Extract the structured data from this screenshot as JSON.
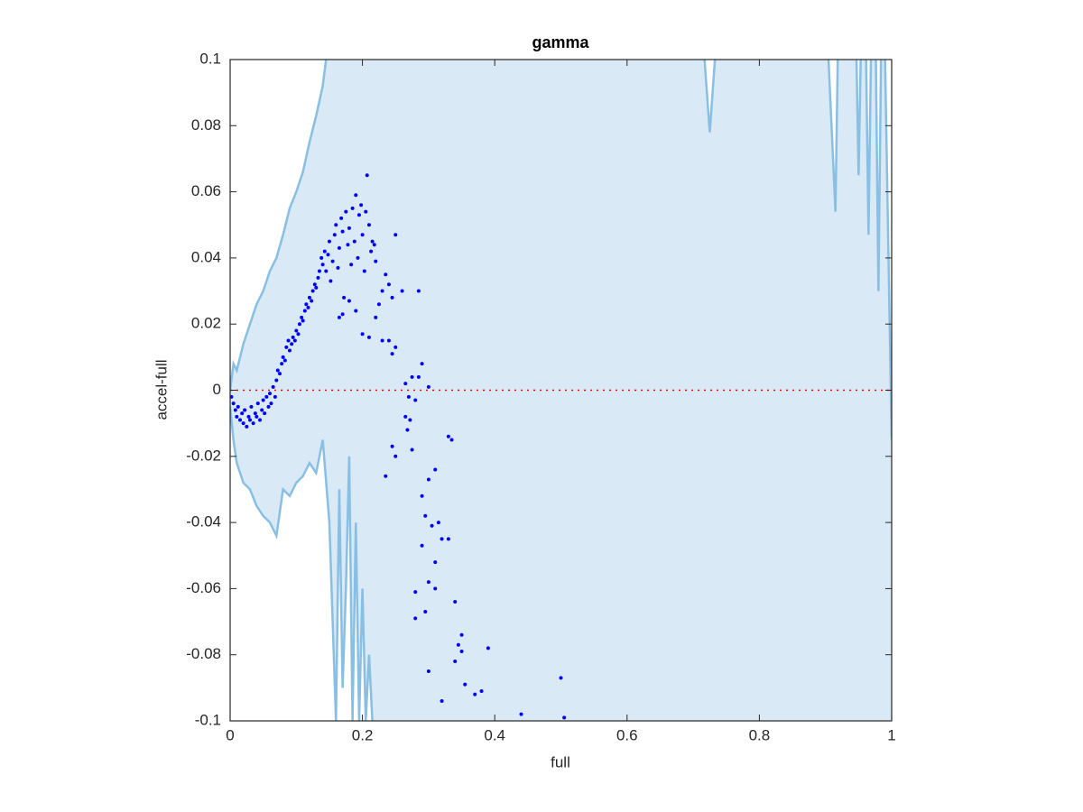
{
  "chart_data": {
    "type": "scatter",
    "title": "gamma",
    "x_label": "full",
    "y_label": "accel-full",
    "xlim": [
      0,
      1
    ],
    "ylim": [
      -0.1,
      0.1
    ],
    "xticks": [
      0,
      0.2,
      0.4,
      0.6,
      0.8,
      1
    ],
    "yticks": [
      -0.1,
      -0.08,
      -0.06,
      -0.04,
      -0.02,
      0,
      0.02,
      0.04,
      0.06,
      0.08,
      0.1
    ],
    "box": true,
    "band": {
      "fill_color": "#d9e9f5",
      "line_color": "#89bfe3",
      "upper": {
        "x": [
          0,
          0.005,
          0.01,
          0.02,
          0.03,
          0.04,
          0.05,
          0.06,
          0.07,
          0.08,
          0.09,
          0.1,
          0.11,
          0.12,
          0.13,
          0.14,
          0.145,
          0.15,
          0.71,
          0.725,
          0.74,
          0.9,
          0.915,
          0.92,
          0.945,
          0.95,
          0.955,
          0.96,
          0.965,
          0.97,
          0.975,
          0.98,
          0.985,
          0.99,
          1
        ],
        "values": [
          0,
          0.008,
          0.006,
          0.014,
          0.02,
          0.026,
          0.03,
          0.036,
          0.04,
          0.047,
          0.055,
          0.06,
          0.066,
          0.075,
          0.083,
          0.092,
          0.1,
          0.12,
          0.12,
          0.078,
          0.12,
          0.12,
          0.054,
          0.12,
          0.12,
          0.065,
          0.12,
          0.12,
          0.047,
          0.12,
          0.12,
          0.03,
          0.12,
          0.1,
          -0.015
        ]
      },
      "lower": {
        "x": [
          0,
          0.005,
          0.01,
          0.02,
          0.03,
          0.04,
          0.05,
          0.06,
          0.07,
          0.08,
          0.09,
          0.1,
          0.11,
          0.12,
          0.13,
          0.14,
          0.15,
          0.155,
          0.16,
          0.165,
          0.17,
          0.175,
          0.18,
          0.185,
          0.19,
          0.195,
          0.2,
          0.205,
          0.21,
          0.215,
          0.22,
          1
        ],
        "values": [
          -0.005,
          -0.015,
          -0.022,
          -0.028,
          -0.03,
          -0.035,
          -0.038,
          -0.04,
          -0.044,
          -0.03,
          -0.032,
          -0.028,
          -0.026,
          -0.022,
          -0.025,
          -0.015,
          -0.04,
          -0.07,
          -0.1,
          -0.03,
          -0.09,
          -0.06,
          -0.02,
          -0.1,
          -0.04,
          -0.1,
          -0.06,
          -0.1,
          -0.08,
          -0.1,
          -0.12,
          -0.12
        ]
      }
    },
    "points": {
      "color": "#0000ff",
      "x": [
        0.002,
        0.005,
        0.008,
        0.01,
        0.012,
        0.015,
        0.018,
        0.02,
        0.022,
        0.025,
        0.028,
        0.03,
        0.032,
        0.035,
        0.038,
        0.04,
        0.042,
        0.045,
        0.048,
        0.05,
        0.052,
        0.055,
        0.058,
        0.06,
        0.062,
        0.065,
        0.068,
        0.07,
        0.072,
        0.075,
        0.078,
        0.08,
        0.083,
        0.085,
        0.088,
        0.09,
        0.093,
        0.095,
        0.098,
        0.1,
        0.103,
        0.105,
        0.108,
        0.11,
        0.113,
        0.115,
        0.118,
        0.12,
        0.123,
        0.125,
        0.128,
        0.13,
        0.133,
        0.135,
        0.138,
        0.14,
        0.143,
        0.145,
        0.148,
        0.15,
        0.152,
        0.155,
        0.158,
        0.16,
        0.163,
        0.165,
        0.168,
        0.17,
        0.172,
        0.175,
        0.178,
        0.18,
        0.183,
        0.185,
        0.188,
        0.19,
        0.193,
        0.195,
        0.198,
        0.2,
        0.203,
        0.205,
        0.207,
        0.21,
        0.213,
        0.215,
        0.218,
        0.22,
        0.225,
        0.23,
        0.235,
        0.24,
        0.245,
        0.25,
        0.26,
        0.285,
        0.165,
        0.17,
        0.18,
        0.19,
        0.2,
        0.21,
        0.22,
        0.23,
        0.24,
        0.245,
        0.25,
        0.265,
        0.27,
        0.275,
        0.28,
        0.285,
        0.29,
        0.3,
        0.265,
        0.272,
        0.268,
        0.245,
        0.25,
        0.275,
        0.235,
        0.3,
        0.31,
        0.33,
        0.335,
        0.29,
        0.295,
        0.305,
        0.315,
        0.32,
        0.33,
        0.29,
        0.31,
        0.3,
        0.31,
        0.28,
        0.295,
        0.28,
        0.34,
        0.345,
        0.35,
        0.34,
        0.35,
        0.39,
        0.3,
        0.355,
        0.37,
        0.38,
        0.32,
        0.44,
        0.5,
        0.505
      ],
      "values": [
        -0.002,
        -0.004,
        -0.006,
        -0.008,
        -0.005,
        -0.009,
        -0.007,
        -0.01,
        -0.006,
        -0.011,
        -0.008,
        -0.009,
        -0.005,
        -0.01,
        -0.007,
        -0.008,
        -0.004,
        -0.009,
        -0.006,
        -0.003,
        -0.007,
        -0.002,
        -0.005,
        -0.001,
        -0.004,
        0.001,
        -0.002,
        0.003,
        0.006,
        0.005,
        0.008,
        0.01,
        0.009,
        0.013,
        0.015,
        0.012,
        0.014,
        0.016,
        0.015,
        0.018,
        0.017,
        0.02,
        0.022,
        0.021,
        0.024,
        0.026,
        0.025,
        0.028,
        0.027,
        0.03,
        0.032,
        0.031,
        0.034,
        0.036,
        0.04,
        0.038,
        0.042,
        0.036,
        0.041,
        0.045,
        0.033,
        0.039,
        0.047,
        0.05,
        0.037,
        0.043,
        0.052,
        0.048,
        0.028,
        0.054,
        0.044,
        0.049,
        0.038,
        0.055,
        0.045,
        0.059,
        0.04,
        0.053,
        0.056,
        0.047,
        0.036,
        0.054,
        0.065,
        0.05,
        0.042,
        0.045,
        0.044,
        0.039,
        0.026,
        0.03,
        0.035,
        0.032,
        0.028,
        0.047,
        0.03,
        0.03,
        0.022,
        0.023,
        0.027,
        0.024,
        0.017,
        0.016,
        0.022,
        0.015,
        0.015,
        0.011,
        0.013,
        0.002,
        -0.002,
        0.004,
        -0.003,
        0.004,
        0.008,
        0.001,
        -0.008,
        -0.009,
        -0.012,
        -0.017,
        -0.02,
        -0.018,
        -0.026,
        -0.027,
        -0.024,
        -0.014,
        -0.015,
        -0.032,
        -0.038,
        -0.041,
        -0.04,
        -0.045,
        -0.045,
        -0.047,
        -0.052,
        -0.058,
        -0.06,
        -0.061,
        -0.067,
        -0.069,
        -0.064,
        -0.077,
        -0.074,
        -0.082,
        -0.079,
        -0.078,
        -0.085,
        -0.089,
        -0.092,
        -0.091,
        -0.094,
        -0.098,
        -0.087,
        -0.099
      ]
    },
    "reference_line": {
      "value": 0,
      "color": "#ff0000"
    }
  }
}
